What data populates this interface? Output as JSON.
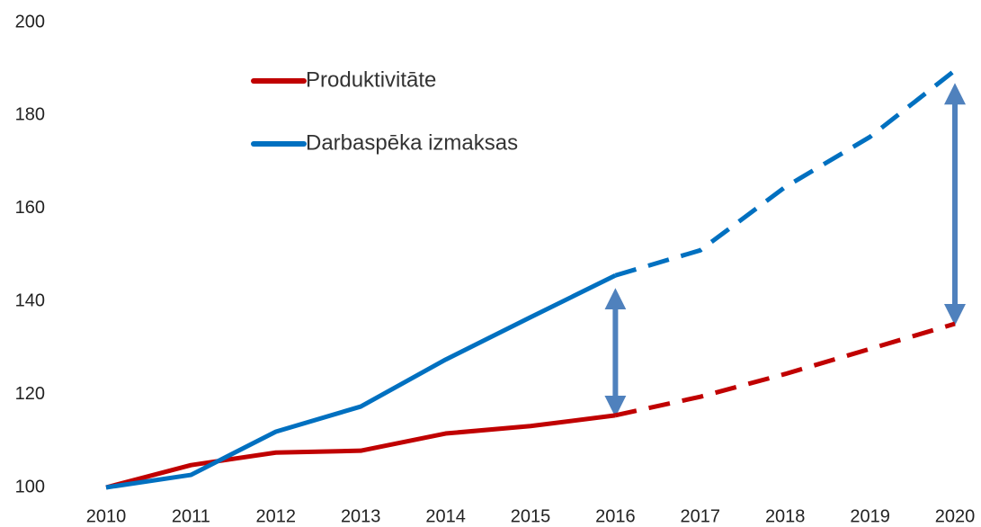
{
  "chart_data": {
    "type": "line",
    "categories": [
      "2010",
      "2011",
      "2012",
      "2013",
      "2014",
      "2015",
      "2016",
      "2017",
      "2018",
      "2019",
      "2020"
    ],
    "series": [
      {
        "name": "Produktivitāte",
        "color": "#c00000",
        "values": [
          100,
          104.8,
          107.5,
          107.9,
          111.6,
          113.2,
          115.5,
          119.5,
          124.4,
          129.8,
          135.2
        ]
      },
      {
        "name": "Darbaspēka izmaksas",
        "color": "#0070c0",
        "values": [
          100,
          102.7,
          112,
          117.4,
          127.5,
          136.6,
          145.6,
          151,
          164.6,
          175.4,
          189.7
        ]
      }
    ],
    "dashed_from": "2016",
    "ylim": [
      100,
      200
    ],
    "yticks": [
      100,
      120,
      140,
      160,
      180,
      200
    ],
    "grid": false
  }
}
